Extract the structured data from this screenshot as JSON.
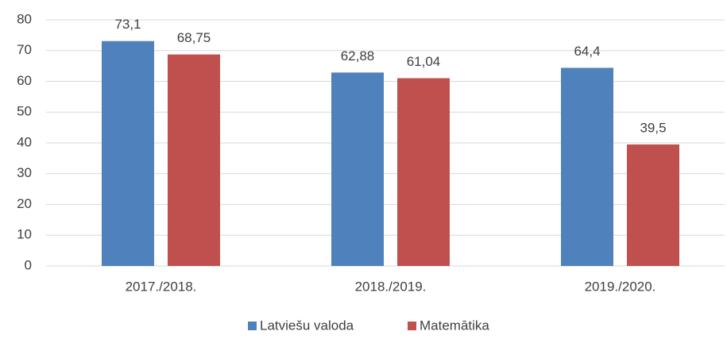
{
  "chart_data": {
    "type": "bar",
    "categories": [
      "2017./2018.",
      "2018./2019.",
      "2019./2020."
    ],
    "series": [
      {
        "name": "Latviešu valoda",
        "color": "#4f81bd",
        "values": [
          73.1,
          62.88,
          64.4
        ],
        "value_labels": [
          "73,1",
          "62,88",
          "64,4"
        ]
      },
      {
        "name": "Matemātika",
        "color": "#c0504d",
        "values": [
          68.75,
          61.04,
          39.5
        ],
        "value_labels": [
          "68,75",
          "61,04",
          "39,5"
        ]
      }
    ],
    "ylim": [
      0,
      80
    ],
    "yticks": [
      0,
      10,
      20,
      30,
      40,
      50,
      60,
      70,
      80
    ],
    "grid": true,
    "legend": "bottom"
  }
}
